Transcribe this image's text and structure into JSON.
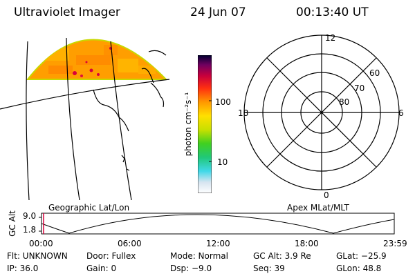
{
  "header": {
    "title": "Ultraviolet Imager",
    "date": "24 Jun 07",
    "time": "00:13:40 UT"
  },
  "colorbar": {
    "label": "photon cm⁻²s⁻¹",
    "ticks": [
      "100",
      "10"
    ]
  },
  "polar_plot": {
    "mlt_labels": [
      "12",
      "18",
      "6",
      "0"
    ],
    "lat_labels": [
      "60",
      "70",
      "80"
    ]
  },
  "captions": {
    "left": "Geographic Lat/Lon",
    "right": "Apex MLat/MLT"
  },
  "altitude_plot": {
    "ylabel": "GC Alt",
    "yticks": [
      "9.0",
      "1.8"
    ],
    "xticks": [
      "00:00",
      "06:00",
      "12:00",
      "18:00",
      "23:59"
    ]
  },
  "info": {
    "flt": "Flt: UNKNOWN",
    "door": "Door: Fullex",
    "mode": "Mode: Normal",
    "gc_alt": "GC Alt: 3.9 Re",
    "glat": "GLat: −25.9",
    "ip": "IP: 36.0",
    "gain": "Gain:  0",
    "dsp": "Dsp:   −9.0",
    "seq": "Seq: 39",
    "glon": "GLon:  48.8"
  },
  "colors": {
    "aurora_orange": "#ff9e00",
    "aurora_edge": "#c8d800",
    "spot_red": "#d8003a"
  }
}
